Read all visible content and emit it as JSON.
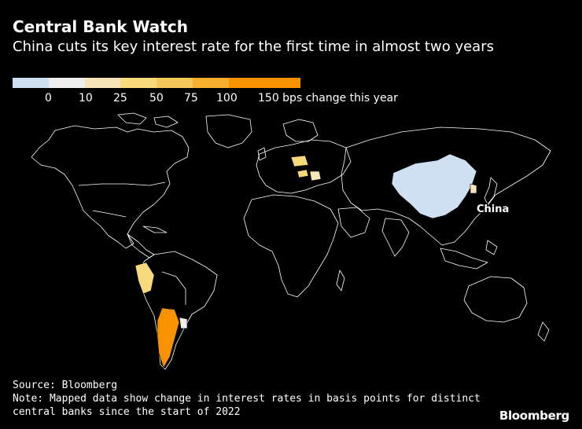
{
  "header": {
    "title": "Central Bank Watch",
    "subtitle": "China cuts its key interest rate for the first time in almost two years"
  },
  "legend": {
    "labels": [
      "0",
      "10",
      "25",
      "50",
      "75",
      "100",
      "150 bps change this year"
    ],
    "colors": [
      "#cfe0f3",
      "#eeeeee",
      "#f7e4b8",
      "#f5d97a",
      "#f3c75a",
      "#f7ae2c",
      "#f99200"
    ]
  },
  "map": {
    "land_fill": "#000000",
    "border_color": "#ffffff",
    "countries": [
      {
        "name": "China",
        "bps": 0,
        "color": "#cfe0f3"
      },
      {
        "name": "Peru",
        "bps": 50,
        "color": "#f5d97a"
      },
      {
        "name": "Argentina",
        "bps": 150,
        "color": "#f99200"
      },
      {
        "name": "Uruguay",
        "bps": 10,
        "color": "#eeeeee"
      },
      {
        "name": "Poland",
        "bps": 50,
        "color": "#f5d97a"
      },
      {
        "name": "Hungary",
        "bps": 50,
        "color": "#f5d97a"
      },
      {
        "name": "Romania",
        "bps": 25,
        "color": "#f7e4b8"
      },
      {
        "name": "South Korea",
        "bps": 25,
        "color": "#f7e4b8"
      }
    ],
    "callout_label": "China"
  },
  "footer": {
    "source": "Source: Bloomberg",
    "note_line1": "Note: Mapped data show change in interest rates in basis points for distinct",
    "note_line2": "central banks since the start of 2022"
  },
  "brand": "Bloomberg"
}
